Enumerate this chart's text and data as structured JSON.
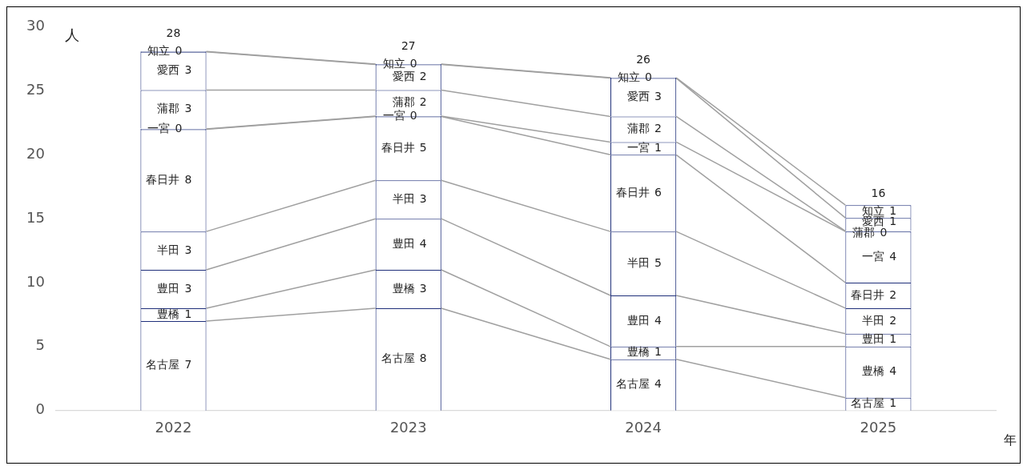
{
  "chart_data": {
    "type": "bar",
    "stacked": true,
    "xlabel": "年",
    "ylabel": "人",
    "categories": [
      "2022",
      "2023",
      "2024",
      "2025"
    ],
    "ylim": [
      0,
      30
    ],
    "yticks": [
      0,
      5,
      10,
      15,
      20,
      25,
      30
    ],
    "grid": false,
    "legend": false,
    "data_labels": true,
    "totals": [
      "28",
      "27",
      "26",
      "16"
    ],
    "series": [
      {
        "name": "名古屋",
        "color": "#ffffff",
        "values": [
          7,
          8,
          4,
          1
        ]
      },
      {
        "name": "豊橋",
        "color": "#ffffff",
        "values": [
          1,
          3,
          1,
          4
        ]
      },
      {
        "name": "豊田",
        "color": "#ffffff",
        "values": [
          3,
          4,
          4,
          1
        ]
      },
      {
        "name": "半田",
        "color": "#ffffff",
        "values": [
          3,
          3,
          5,
          2
        ]
      },
      {
        "name": "春日井",
        "color": "#ffffff",
        "values": [
          8,
          5,
          6,
          2
        ]
      },
      {
        "name": "一宮",
        "color": "#ffffff",
        "values": [
          0,
          0,
          1,
          4
        ]
      },
      {
        "name": "蒲郡",
        "color": "#ffffff",
        "values": [
          3,
          2,
          2,
          0
        ]
      },
      {
        "name": "愛西",
        "color": "#ffffff",
        "values": [
          3,
          2,
          3,
          1
        ]
      },
      {
        "name": "知立",
        "color": "#ffffff",
        "values": [
          0,
          0,
          0,
          1
        ]
      }
    ]
  }
}
